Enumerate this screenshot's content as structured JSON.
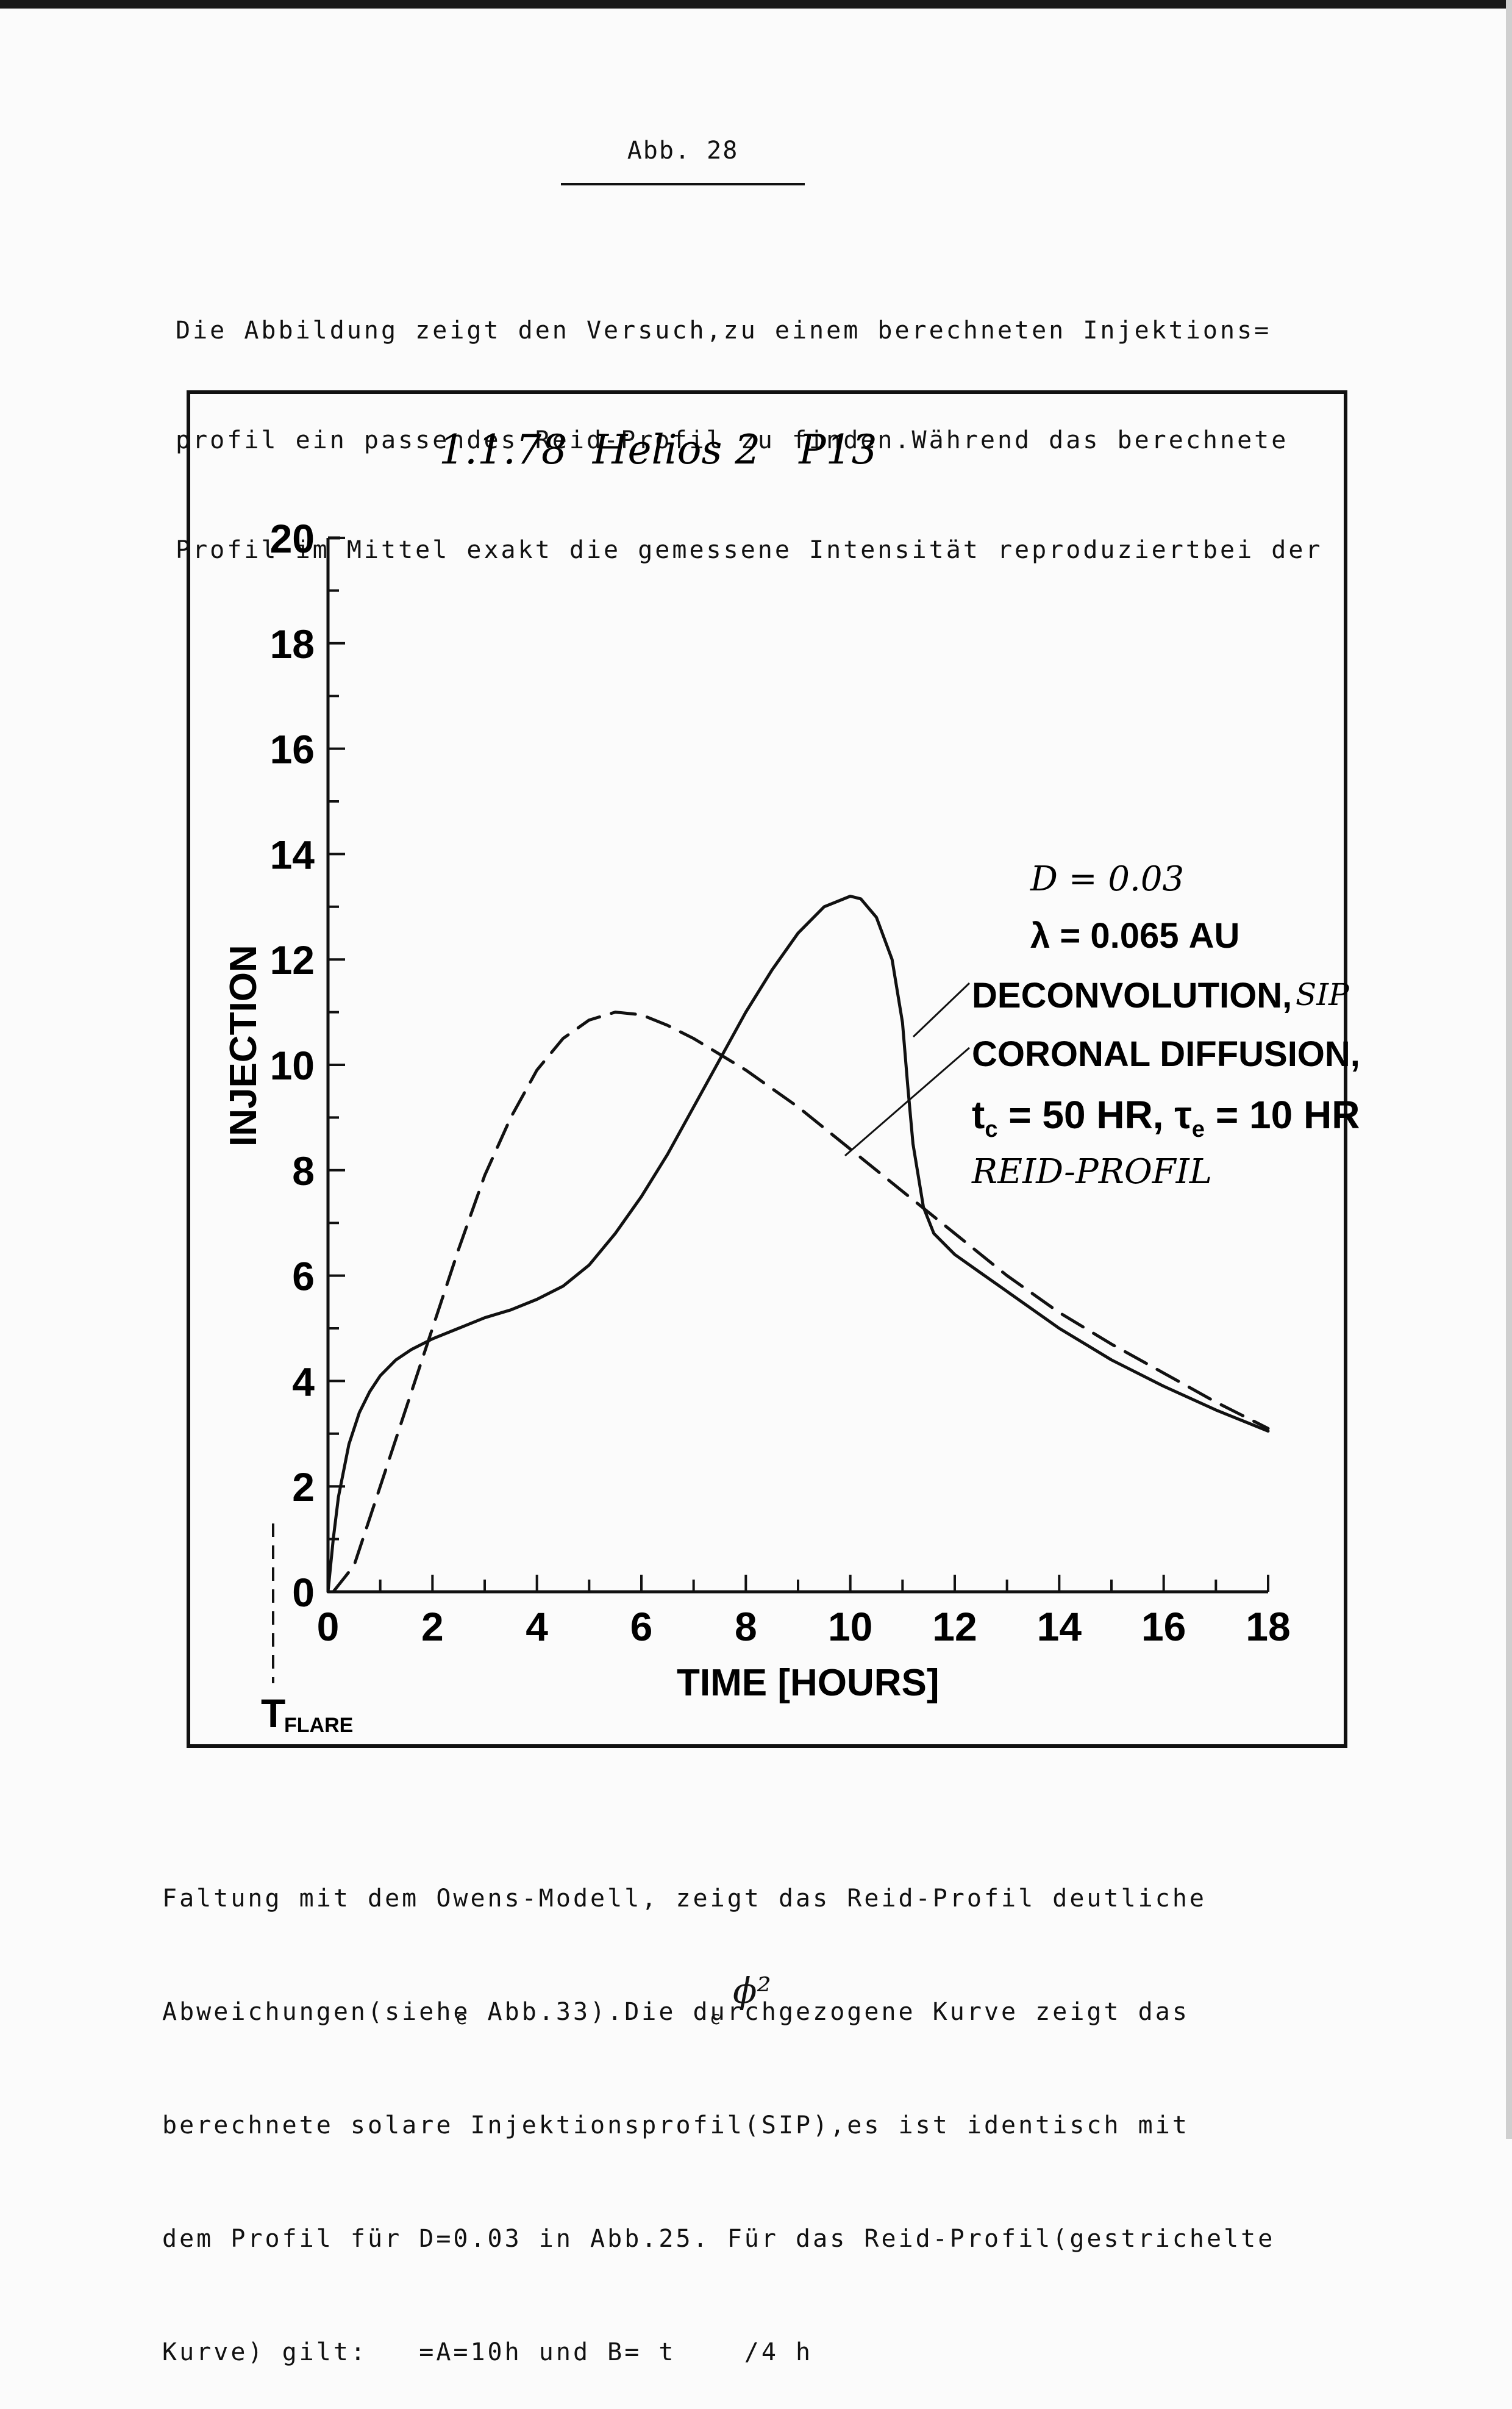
{
  "figure_label": "Abb. 28",
  "paragraph_top": [
    "Die Abbildung zeigt den Versuch,zu einem berechneten Injektions=",
    "profil ein passendes Reid-Profil zu finden.Während das berechnete",
    "Profil im Mittel exakt die gemessene Intensität reproduziertbei der"
  ],
  "paragraph_bottom": [
    "Faltung mit dem Owens-Modell, zeigt das Reid-Profil deutliche",
    "Abweichungen(siehe Abb.33).Die durchgezogene Kurve zeigt das",
    "berechnete solare Injektionsprofil(SIP),es ist identisch mit",
    "dem Profil für D=0.03 in Abb.25. Für das Reid-Profil(gestrichelte",
    "Kurve) gilt:   =A=10h und B= t    /4 h"
  ],
  "formula_subscripts": {
    "e": "e",
    "c": "c",
    "phi_squared": "ϕ²"
  },
  "chart_data": {
    "type": "line",
    "title": "1.1.78  Helios 2   P13",
    "xlabel": "TIME [HOURS]",
    "ylabel": "INJECTION",
    "xlim": [
      0,
      18
    ],
    "ylim": [
      0,
      20
    ],
    "xticks": [
      "0",
      "2",
      "4",
      "6",
      "8",
      "10",
      "12",
      "14",
      "16",
      "18"
    ],
    "yticks": [
      "0",
      "2",
      "4",
      "6",
      "8",
      "10",
      "12",
      "14",
      "16",
      "18",
      "20"
    ],
    "flare_marker": {
      "x": -1,
      "label": "T",
      "sub": "FLARE"
    },
    "annotations": [
      "D = 0.03",
      "λ = 0.065 AU",
      "DECONVOLUTION,",
      "SIP",
      "CORONAL DIFFUSION,",
      "t",
      "c",
      " = 50 HR, τ",
      "e",
      " = 10 HR",
      "REID-PROFIL"
    ],
    "series": [
      {
        "style": "solid",
        "x": [
          0,
          0.1,
          0.2,
          0.4,
          0.6,
          0.8,
          1.0,
          1.3,
          1.6,
          2.0,
          2.5,
          3.0,
          3.5,
          4.0,
          4.5,
          5.0,
          5.5,
          6.0,
          6.5,
          7.0,
          7.5,
          8.0,
          8.5,
          9.0,
          9.5,
          10.0,
          10.2,
          10.5,
          10.8,
          11.0,
          11.1,
          11.2,
          11.4,
          11.6,
          11.8,
          12.0,
          12.5,
          13.0,
          14.0,
          15.0,
          16.0,
          17.0,
          18.0
        ],
        "y": [
          0,
          1.0,
          1.8,
          2.8,
          3.4,
          3.8,
          4.1,
          4.4,
          4.6,
          4.8,
          5.0,
          5.2,
          5.35,
          5.55,
          5.8,
          6.2,
          6.8,
          7.5,
          8.3,
          9.2,
          10.1,
          11.0,
          11.8,
          12.5,
          13.0,
          13.2,
          13.15,
          12.8,
          12.0,
          10.8,
          9.6,
          8.5,
          7.3,
          6.8,
          6.6,
          6.4,
          6.05,
          5.7,
          5.0,
          4.4,
          3.9,
          3.45,
          3.05
        ]
      },
      {
        "style": "dashed",
        "x": [
          0.1,
          0.5,
          1.0,
          1.5,
          2.0,
          2.5,
          3.0,
          3.5,
          4.0,
          4.5,
          5.0,
          5.5,
          6.0,
          6.5,
          7.0,
          7.5,
          8.0,
          9.0,
          10.0,
          11.0,
          12.0,
          13.0,
          14.0,
          15.0,
          16.0,
          17.0,
          18.0
        ],
        "y": [
          0,
          0.5,
          2.0,
          3.5,
          5.0,
          6.5,
          7.9,
          9.0,
          9.9,
          10.5,
          10.85,
          11.0,
          10.95,
          10.75,
          10.5,
          10.2,
          9.9,
          9.2,
          8.4,
          7.6,
          6.8,
          6.0,
          5.3,
          4.7,
          4.15,
          3.6,
          3.1
        ]
      }
    ]
  }
}
